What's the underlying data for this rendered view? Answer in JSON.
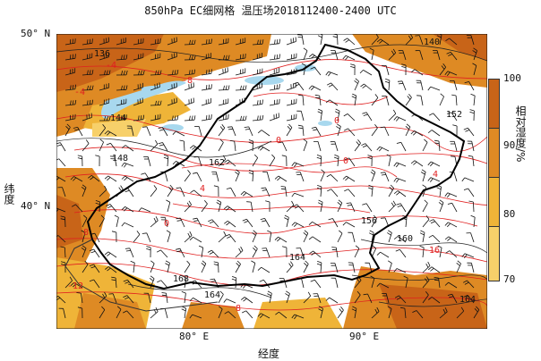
{
  "title": "850hPa EC细网格 温压场2018112400-2400 UTC",
  "x_axis_label": "经度",
  "y_axis_label": "纬度",
  "lat_ticks": [
    "50° N",
    "40° N"
  ],
  "lon_ticks": [
    "80° E",
    "90° E"
  ],
  "colorbar": {
    "title": "相对湿度/%",
    "ticks": [
      "100",
      "90",
      "80",
      "70"
    ],
    "colors": [
      "#c86418",
      "#de8a24",
      "#efb438",
      "#f7d06a"
    ]
  },
  "contour_labels_black": [
    "136",
    "140",
    "144",
    "148",
    "152",
    "156",
    "160",
    "164",
    "168"
  ],
  "contour_labels_red": [
    "-4",
    "-8",
    "0",
    "4",
    "8",
    "-12",
    "-16"
  ],
  "colors": {
    "geopotential_contour": "#222222",
    "temperature_contour": "#e02020",
    "border": "#000000",
    "water": "#a8d8ee"
  }
}
